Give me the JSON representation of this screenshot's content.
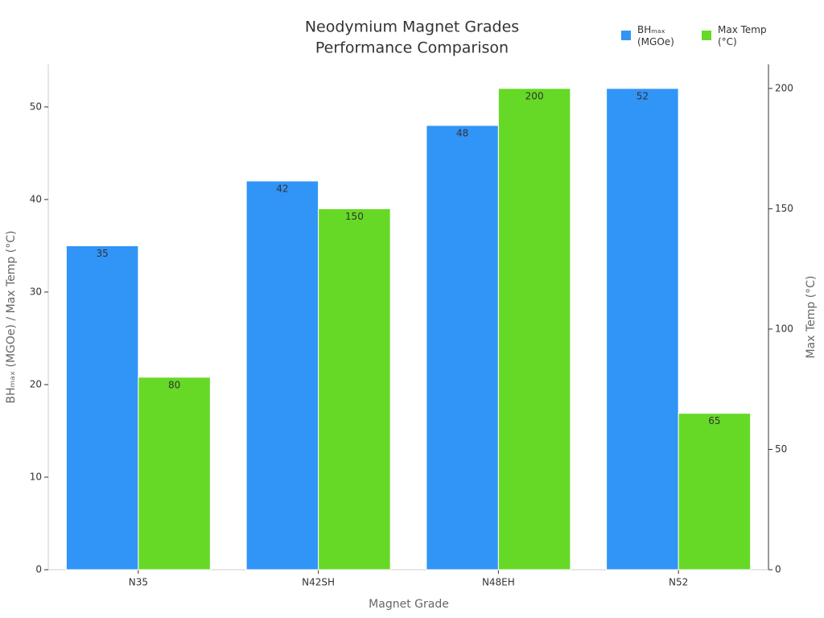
{
  "chart_data": {
    "type": "bar",
    "title": [
      "Neodymium Magnet Grades",
      "Performance Comparison"
    ],
    "x_label": "Magnet Grade",
    "y_label": "BHₘₐₓ (MGOe) / Max Temp (°C)",
    "y2_label": "Max Temp (°C)",
    "categories": [
      "N35",
      "N42SH",
      "N48EH",
      "N52"
    ],
    "series": [
      {
        "name": "BHₘₐₓ (MGOe)",
        "color": "#3194f7",
        "values": [
          35,
          42,
          48,
          52
        ]
      },
      {
        "name": "Max Temp (°C)",
        "color": "#66d926",
        "values": [
          80,
          150,
          200,
          65
        ],
        "axis": "y2"
      }
    ],
    "ylim": [
      0,
      54.6
    ],
    "yticks": [
      0,
      10,
      20,
      30,
      40,
      50
    ],
    "y2lim": [
      0,
      210
    ],
    "y2ticks": [
      0,
      50,
      100,
      150,
      200
    ],
    "grid": false,
    "legend": "top-right"
  }
}
